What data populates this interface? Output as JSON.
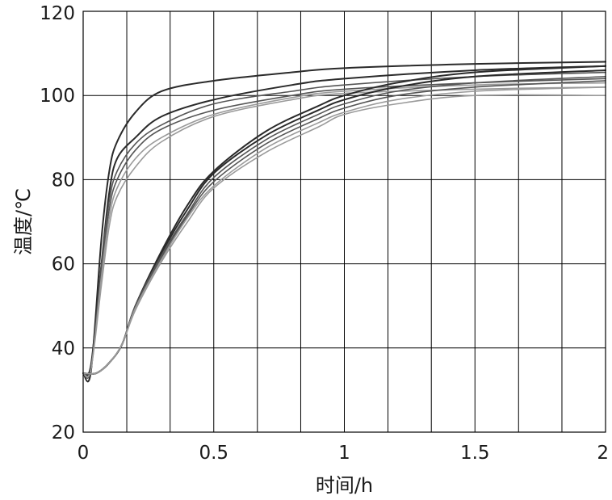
{
  "chart_data": {
    "type": "line",
    "xlabel": "时间/h",
    "ylabel": "温度/℃",
    "xlim": [
      0,
      2
    ],
    "ylim": [
      20,
      120
    ],
    "x_ticks": [
      "0",
      "0.5",
      "1",
      "1.5",
      "2"
    ],
    "x_tick_values": [
      0,
      0.5,
      1,
      1.5,
      2
    ],
    "y_ticks": [
      "20",
      "40",
      "60",
      "80",
      "100",
      "120"
    ],
    "y_tick_values": [
      20,
      40,
      60,
      80,
      100,
      120
    ],
    "x_gridlines": [
      0.167,
      0.333,
      0.5,
      0.667,
      0.833,
      1.0,
      1.167,
      1.333,
      1.5,
      1.667,
      1.833
    ],
    "y_gridlines": [
      40,
      60,
      80,
      100
    ],
    "grid": true,
    "legend": "none",
    "colors": {
      "dark": "#2a2a2a",
      "mid": "#555555",
      "light": "#9a9a9a",
      "grid": "#000000"
    },
    "series": [
      {
        "color": "dark",
        "points": [
          [
            0,
            34
          ],
          [
            0.03,
            34.5
          ],
          [
            0.07,
            66
          ],
          [
            0.1,
            82
          ],
          [
            0.13,
            89
          ],
          [
            0.2,
            96
          ],
          [
            0.3,
            101
          ],
          [
            0.5,
            103.5
          ],
          [
            0.8,
            105.5
          ],
          [
            1.0,
            106.5
          ],
          [
            1.5,
            107.5
          ],
          [
            2.0,
            108
          ]
        ]
      },
      {
        "color": "dark",
        "points": [
          [
            0,
            34
          ],
          [
            0.03,
            36
          ],
          [
            0.07,
            60
          ],
          [
            0.1,
            77
          ],
          [
            0.13,
            85
          ],
          [
            0.2,
            90
          ],
          [
            0.3,
            95
          ],
          [
            0.5,
            99
          ],
          [
            0.8,
            102.5
          ],
          [
            1.0,
            104
          ],
          [
            1.5,
            106
          ],
          [
            2.0,
            107
          ]
        ]
      },
      {
        "color": "mid",
        "points": [
          [
            0,
            34
          ],
          [
            0.03,
            35
          ],
          [
            0.07,
            60
          ],
          [
            0.1,
            75
          ],
          [
            0.13,
            82
          ],
          [
            0.2,
            88.5
          ],
          [
            0.3,
            93
          ],
          [
            0.5,
            98
          ],
          [
            0.8,
            101
          ],
          [
            1.0,
            102.5
          ],
          [
            1.5,
            104.5
          ],
          [
            2.0,
            105.5
          ]
        ]
      },
      {
        "color": "mid",
        "points": [
          [
            0,
            34
          ],
          [
            0.03,
            35
          ],
          [
            0.07,
            58
          ],
          [
            0.1,
            73
          ],
          [
            0.13,
            80
          ],
          [
            0.2,
            87
          ],
          [
            0.3,
            92
          ],
          [
            0.5,
            96.5
          ],
          [
            0.8,
            100
          ],
          [
            1.0,
            101.5
          ],
          [
            1.5,
            103
          ],
          [
            2.0,
            104
          ]
        ]
      },
      {
        "color": "light",
        "points": [
          [
            0,
            34
          ],
          [
            0.03,
            35
          ],
          [
            0.07,
            57
          ],
          [
            0.1,
            71
          ],
          [
            0.13,
            78
          ],
          [
            0.2,
            85
          ],
          [
            0.3,
            90
          ],
          [
            0.5,
            95.5
          ],
          [
            0.8,
            99.5
          ],
          [
            1.0,
            101
          ],
          [
            1.5,
            102.5
          ],
          [
            2.0,
            103
          ]
        ]
      },
      {
        "color": "light",
        "points": [
          [
            0,
            34
          ],
          [
            0.03,
            35
          ],
          [
            0.07,
            55
          ],
          [
            0.1,
            69
          ],
          [
            0.13,
            76
          ],
          [
            0.2,
            83
          ],
          [
            0.3,
            89
          ],
          [
            0.5,
            95
          ],
          [
            0.8,
            99
          ],
          [
            1.0,
            100.5
          ],
          [
            1.5,
            101.5
          ],
          [
            2.0,
            102
          ]
        ]
      },
      {
        "color": "dark",
        "points": [
          [
            0,
            34
          ],
          [
            0.05,
            34
          ],
          [
            0.1,
            36.5
          ],
          [
            0.15,
            41
          ],
          [
            0.2,
            50
          ],
          [
            0.3,
            63
          ],
          [
            0.4,
            74
          ],
          [
            0.5,
            82
          ],
          [
            0.7,
            91.5
          ],
          [
            0.9,
            97.5
          ],
          [
            1.0,
            100
          ],
          [
            1.2,
            103
          ],
          [
            1.5,
            105.5
          ],
          [
            2.0,
            107
          ]
        ]
      },
      {
        "color": "dark",
        "points": [
          [
            0,
            34
          ],
          [
            0.05,
            34
          ],
          [
            0.1,
            36.5
          ],
          [
            0.15,
            41
          ],
          [
            0.2,
            50
          ],
          [
            0.3,
            62.5
          ],
          [
            0.4,
            73
          ],
          [
            0.5,
            81.5
          ],
          [
            0.7,
            90.5
          ],
          [
            0.9,
            96.5
          ],
          [
            1.0,
            99
          ],
          [
            1.2,
            102
          ],
          [
            1.5,
            104.5
          ],
          [
            2.0,
            106
          ]
        ]
      },
      {
        "color": "mid",
        "points": [
          [
            0,
            34
          ],
          [
            0.05,
            34
          ],
          [
            0.1,
            36.5
          ],
          [
            0.15,
            41
          ],
          [
            0.2,
            50
          ],
          [
            0.3,
            62
          ],
          [
            0.4,
            72
          ],
          [
            0.5,
            80.5
          ],
          [
            0.7,
            89.5
          ],
          [
            0.9,
            95.5
          ],
          [
            1.0,
            98
          ],
          [
            1.2,
            101
          ],
          [
            1.5,
            103
          ],
          [
            2.0,
            104.5
          ]
        ]
      },
      {
        "color": "mid",
        "points": [
          [
            0,
            34
          ],
          [
            0.05,
            34
          ],
          [
            0.1,
            36.5
          ],
          [
            0.15,
            41
          ],
          [
            0.2,
            49.5
          ],
          [
            0.3,
            61.5
          ],
          [
            0.4,
            71.5
          ],
          [
            0.5,
            79.5
          ],
          [
            0.7,
            88.5
          ],
          [
            0.9,
            94.5
          ],
          [
            1.0,
            97
          ],
          [
            1.2,
            100
          ],
          [
            1.5,
            102
          ],
          [
            2.0,
            103.5
          ]
        ]
      },
      {
        "color": "light",
        "points": [
          [
            0,
            34
          ],
          [
            0.05,
            34
          ],
          [
            0.1,
            36.5
          ],
          [
            0.15,
            41
          ],
          [
            0.2,
            49.5
          ],
          [
            0.3,
            61
          ],
          [
            0.4,
            71
          ],
          [
            0.5,
            78.5
          ],
          [
            0.7,
            87.5
          ],
          [
            0.9,
            93.5
          ],
          [
            1.0,
            96
          ],
          [
            1.2,
            99
          ],
          [
            1.5,
            101
          ],
          [
            2.0,
            102
          ]
        ]
      },
      {
        "color": "light",
        "points": [
          [
            0,
            34
          ],
          [
            0.05,
            34
          ],
          [
            0.1,
            36.5
          ],
          [
            0.15,
            41
          ],
          [
            0.2,
            49
          ],
          [
            0.3,
            60.5
          ],
          [
            0.4,
            70
          ],
          [
            0.5,
            78
          ],
          [
            0.7,
            86.5
          ],
          [
            0.9,
            92.5
          ],
          [
            1.0,
            95.5
          ],
          [
            1.2,
            98
          ],
          [
            1.5,
            100
          ],
          [
            2.0,
            100
          ]
        ]
      }
    ]
  }
}
